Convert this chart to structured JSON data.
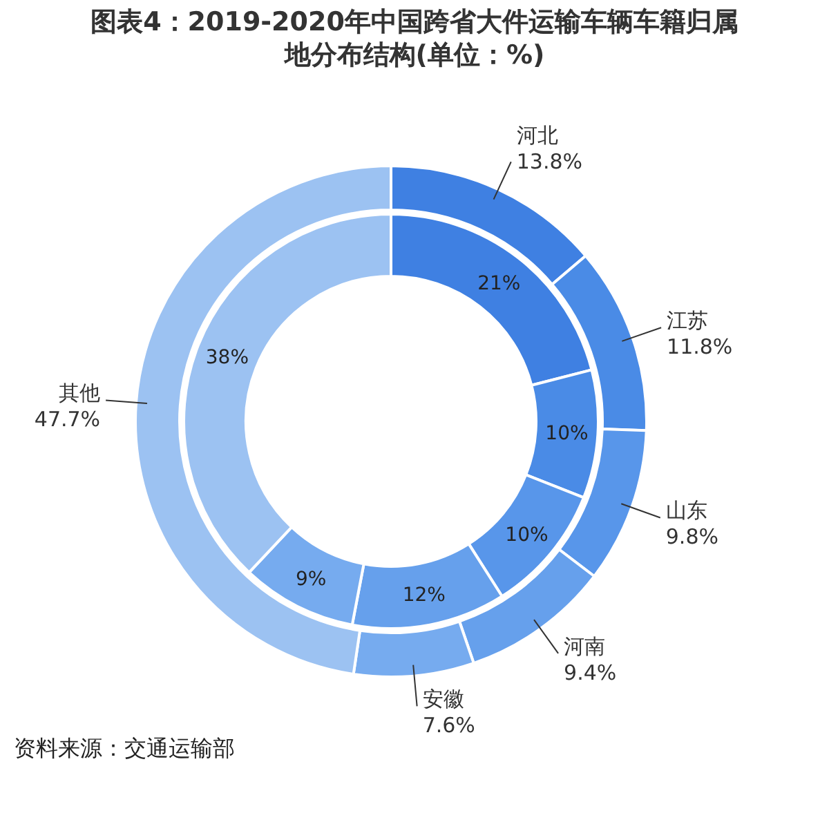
{
  "chart_data": {
    "type": "donut",
    "title": "图表4：2019-2020年中国跨省大件运输车辆车籍归属地分布结构(单位：%)",
    "categories": [
      "河北",
      "江苏",
      "山东",
      "河南",
      "安徽",
      "其他"
    ],
    "series": [
      {
        "values": [
          13.8,
          11.8,
          9.8,
          9.4,
          7.6,
          47.7
        ],
        "value_labels": [
          "13.8%",
          "11.8%",
          "9.8%",
          "9.4%",
          "7.6%",
          "47.7%"
        ],
        "colors": [
          "#3f80e2",
          "#4a8be6",
          "#5896ea",
          "#66a0ec",
          "#76abef",
          "#9cc2f2"
        ]
      },
      {
        "values": [
          21,
          10,
          10,
          12,
          9,
          38
        ],
        "value_labels": [
          "21%",
          "10%",
          "10%",
          "12%",
          "9%",
          "38%"
        ],
        "colors": [
          "#3f80e2",
          "#4a8be6",
          "#5896ea",
          "#66a0ec",
          "#76abef",
          "#9cc2f2"
        ]
      }
    ],
    "annotations": [
      "资料来源：交通运输部"
    ]
  }
}
